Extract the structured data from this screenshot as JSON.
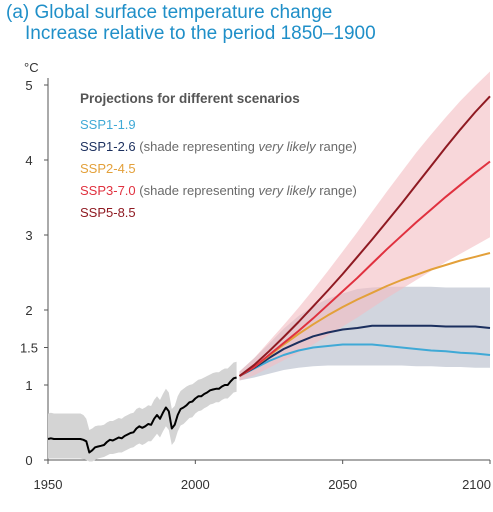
{
  "title": {
    "line1": "(a) Global surface temperature change",
    "line2": "Increase relative to the period 1850–1900"
  },
  "colors": {
    "ssp119": "#3fa9d6",
    "ssp126": "#1b2f5e",
    "ssp245": "#e3a03a",
    "ssp370": "#e0313f",
    "ssp585": "#8f1a22",
    "historical": "#000000",
    "hist_band": "#d4d4d4",
    "band126": "#c9ced8",
    "band370": "#f3bcc2"
  },
  "chart_data": {
    "type": "line",
    "y_unit": "°C",
    "y_ticks": [
      0,
      1,
      1.5,
      2,
      3,
      4,
      5
    ],
    "y_tick_labels": [
      "0",
      "1",
      "1.5",
      "2",
      "3",
      "4",
      "5"
    ],
    "x_ticks": [
      1950,
      2000,
      2050,
      2100
    ],
    "x_tick_labels": [
      "1950",
      "2000",
      "2050",
      "2100"
    ],
    "xlim": [
      1950,
      2100
    ],
    "ylim": [
      0,
      5
    ],
    "legend": {
      "title": "Projections for different scenarios",
      "entries": [
        {
          "name": "SSP1-1.9",
          "color": "#3fa9d6",
          "note": "",
          "note_italic": "",
          "note_end": ""
        },
        {
          "name": "SSP1-2.6",
          "color": "#1b2f5e",
          "note": " (shade representing ",
          "note_italic": "very likely",
          "note_end": " range)"
        },
        {
          "name": "SSP2-4.5",
          "color": "#e3a03a",
          "note": "",
          "note_italic": "",
          "note_end": ""
        },
        {
          "name": "SSP3-7.0",
          "color": "#e0313f",
          "note": " (shade representing ",
          "note_italic": "very likely",
          "note_end": " range)"
        },
        {
          "name": "SSP5-8.5",
          "color": "#8f1a22",
          "note": "",
          "note_italic": "",
          "note_end": ""
        }
      ]
    },
    "historical": {
      "x": [
        1950,
        1951,
        1952,
        1953,
        1954,
        1955,
        1956,
        1957,
        1958,
        1959,
        1960,
        1961,
        1962,
        1963,
        1964,
        1965,
        1966,
        1967,
        1968,
        1969,
        1970,
        1971,
        1972,
        1973,
        1974,
        1975,
        1976,
        1977,
        1978,
        1979,
        1980,
        1981,
        1982,
        1983,
        1984,
        1985,
        1986,
        1987,
        1988,
        1989,
        1990,
        1991,
        1992,
        1993,
        1994,
        1995,
        1996,
        1997,
        1998,
        1999,
        2000,
        2001,
        2002,
        2003,
        2004,
        2005,
        2006,
        2007,
        2008,
        2009,
        2010,
        2011,
        2012,
        2013,
        2014
      ],
      "y": [
        0.28,
        0.29,
        0.28,
        0.28,
        0.28,
        0.28,
        0.28,
        0.28,
        0.28,
        0.28,
        0.28,
        0.28,
        0.27,
        0.25,
        0.1,
        0.13,
        0.17,
        0.18,
        0.19,
        0.2,
        0.24,
        0.27,
        0.26,
        0.28,
        0.3,
        0.29,
        0.32,
        0.34,
        0.36,
        0.37,
        0.42,
        0.45,
        0.43,
        0.45,
        0.48,
        0.47,
        0.55,
        0.6,
        0.55,
        0.63,
        0.7,
        0.65,
        0.42,
        0.47,
        0.6,
        0.68,
        0.7,
        0.73,
        0.77,
        0.78,
        0.82,
        0.85,
        0.85,
        0.88,
        0.9,
        0.93,
        0.94,
        0.95,
        0.95,
        0.98,
        1.0,
        1.0,
        1.05,
        1.09,
        1.1
      ],
      "lower": [
        0.02,
        0.02,
        0.02,
        0.02,
        0.02,
        0.02,
        0.02,
        0.02,
        0.02,
        0.02,
        0.02,
        0.02,
        0.01,
        0.0,
        -0.02,
        -0.02,
        0.0,
        0.02,
        0.03,
        0.04,
        0.06,
        0.08,
        0.08,
        0.09,
        0.1,
        0.1,
        0.12,
        0.14,
        0.16,
        0.17,
        0.2,
        0.22,
        0.2,
        0.22,
        0.25,
        0.25,
        0.3,
        0.35,
        0.3,
        0.38,
        0.45,
        0.4,
        0.2,
        0.25,
        0.38,
        0.46,
        0.48,
        0.52,
        0.56,
        0.57,
        0.62,
        0.65,
        0.66,
        0.69,
        0.71,
        0.74,
        0.75,
        0.77,
        0.77,
        0.8,
        0.82,
        0.82,
        0.86,
        0.9,
        0.91
      ],
      "upper": [
        0.62,
        0.63,
        0.62,
        0.62,
        0.62,
        0.62,
        0.62,
        0.62,
        0.62,
        0.62,
        0.62,
        0.62,
        0.6,
        0.55,
        0.4,
        0.42,
        0.45,
        0.46,
        0.46,
        0.47,
        0.5,
        0.52,
        0.52,
        0.54,
        0.56,
        0.55,
        0.58,
        0.6,
        0.62,
        0.63,
        0.68,
        0.7,
        0.68,
        0.7,
        0.73,
        0.72,
        0.8,
        0.85,
        0.8,
        0.88,
        0.95,
        0.9,
        0.68,
        0.72,
        0.85,
        0.92,
        0.95,
        0.98,
        1.0,
        1.01,
        1.04,
        1.07,
        1.08,
        1.1,
        1.12,
        1.14,
        1.16,
        1.17,
        1.17,
        1.2,
        1.22,
        1.22,
        1.26,
        1.3,
        1.31
      ]
    },
    "series": [
      {
        "name": "SSP1-1.9",
        "key": "ssp119",
        "x": [
          2015,
          2020,
          2025,
          2030,
          2035,
          2040,
          2045,
          2050,
          2055,
          2060,
          2065,
          2070,
          2075,
          2080,
          2085,
          2090,
          2095,
          2100
        ],
        "y": [
          1.12,
          1.22,
          1.32,
          1.4,
          1.46,
          1.5,
          1.52,
          1.54,
          1.54,
          1.54,
          1.52,
          1.5,
          1.48,
          1.46,
          1.45,
          1.43,
          1.42,
          1.4
        ]
      },
      {
        "name": "SSP1-2.6",
        "key": "ssp126",
        "x": [
          2015,
          2020,
          2025,
          2030,
          2035,
          2040,
          2045,
          2050,
          2055,
          2060,
          2065,
          2070,
          2075,
          2080,
          2085,
          2090,
          2095,
          2100
        ],
        "y": [
          1.12,
          1.23,
          1.36,
          1.48,
          1.57,
          1.65,
          1.7,
          1.74,
          1.76,
          1.79,
          1.79,
          1.79,
          1.79,
          1.79,
          1.78,
          1.78,
          1.78,
          1.76
        ],
        "lower": [
          1.06,
          1.1,
          1.15,
          1.2,
          1.23,
          1.25,
          1.26,
          1.26,
          1.26,
          1.26,
          1.26,
          1.26,
          1.25,
          1.25,
          1.24,
          1.24,
          1.23,
          1.23
        ],
        "upper": [
          1.18,
          1.36,
          1.55,
          1.75,
          1.92,
          2.05,
          2.15,
          2.22,
          2.28,
          2.3,
          2.31,
          2.31,
          2.31,
          2.31,
          2.3,
          2.3,
          2.3,
          2.3
        ]
      },
      {
        "name": "SSP2-4.5",
        "key": "ssp245",
        "x": [
          2015,
          2020,
          2025,
          2030,
          2035,
          2040,
          2045,
          2050,
          2055,
          2060,
          2065,
          2070,
          2075,
          2080,
          2085,
          2090,
          2095,
          2100
        ],
        "y": [
          1.12,
          1.24,
          1.39,
          1.54,
          1.68,
          1.81,
          1.93,
          2.04,
          2.14,
          2.23,
          2.32,
          2.4,
          2.47,
          2.54,
          2.6,
          2.66,
          2.71,
          2.76
        ]
      },
      {
        "name": "SSP3-7.0",
        "key": "ssp370",
        "x": [
          2015,
          2020,
          2025,
          2030,
          2035,
          2040,
          2045,
          2050,
          2055,
          2060,
          2065,
          2070,
          2075,
          2080,
          2085,
          2090,
          2095,
          2100
        ],
        "y": [
          1.12,
          1.24,
          1.4,
          1.56,
          1.72,
          1.89,
          2.07,
          2.25,
          2.43,
          2.62,
          2.81,
          2.99,
          3.17,
          3.34,
          3.51,
          3.67,
          3.83,
          3.98
        ],
        "lower": [
          1.06,
          1.13,
          1.23,
          1.33,
          1.43,
          1.54,
          1.66,
          1.78,
          1.9,
          2.03,
          2.16,
          2.28,
          2.4,
          2.52,
          2.64,
          2.75,
          2.86,
          2.97
        ],
        "upper": [
          1.18,
          1.36,
          1.58,
          1.8,
          2.03,
          2.27,
          2.52,
          2.78,
          3.04,
          3.31,
          3.58,
          3.84,
          4.1,
          4.34,
          4.57,
          4.79,
          4.99,
          5.18
        ]
      },
      {
        "name": "SSP5-8.5",
        "key": "ssp585",
        "x": [
          2015,
          2020,
          2025,
          2030,
          2035,
          2040,
          2045,
          2050,
          2055,
          2060,
          2065,
          2070,
          2075,
          2080,
          2085,
          2090,
          2095,
          2100
        ],
        "y": [
          1.12,
          1.27,
          1.45,
          1.64,
          1.84,
          2.05,
          2.26,
          2.48,
          2.71,
          2.94,
          3.18,
          3.42,
          3.67,
          3.92,
          4.17,
          4.41,
          4.64,
          4.85
        ]
      }
    ]
  }
}
